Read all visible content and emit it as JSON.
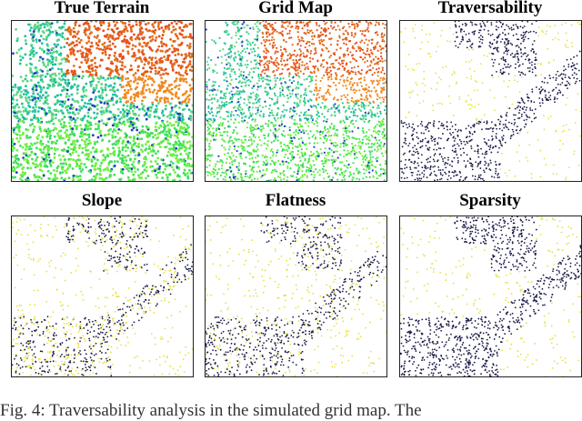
{
  "panels": [
    {
      "title": "True Terrain",
      "style": "height-colored"
    },
    {
      "title": "Grid Map",
      "style": "height-colored"
    },
    {
      "title": "Traversability",
      "style": "yellow-navy"
    },
    {
      "title": "Slope",
      "style": "yellow-navy"
    },
    {
      "title": "Flatness",
      "style": "yellow-navy"
    },
    {
      "title": "Sparsity",
      "style": "yellow-navy"
    }
  ],
  "caption": "Fig. 4: Traversability analysis in the simulated grid map. The",
  "colors": {
    "traversable": "#1c1c4a",
    "non_traversable": "#e8e040"
  }
}
